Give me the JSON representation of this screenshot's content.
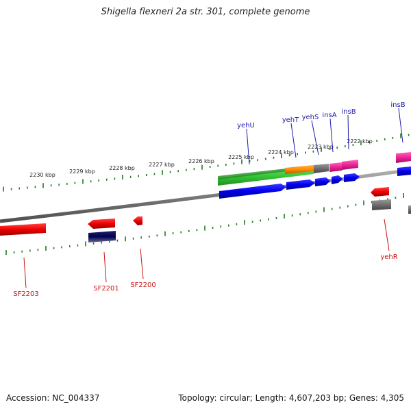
{
  "title": "Shigella flexneri 2a str. 301, complete genome",
  "footer": {
    "accession": "Accession: NC_004337",
    "summary": "Topology: circular; Length: 4,607,203 bp; Genes: 4,305"
  },
  "colors": {
    "label_upper": "#1a1ab0",
    "label_lower": "#cc1111",
    "ruler": "#1f7a1f",
    "backbone": "#7a7a7a"
  },
  "ruler_upper_ticks": [
    "2230 kbp",
    "2229 kbp",
    "2228 kbp",
    "2227 kbp",
    "2226 kbp",
    "2225 kbp",
    "2224 kbp",
    "2223 kbp",
    "2222 kbp"
  ],
  "genes_upper": [
    "yehU",
    "yehT",
    "yehS",
    "insA",
    "insB",
    "insB"
  ],
  "genes_lower": [
    "SF2203",
    "SF2201",
    "SF2200",
    "yehR"
  ],
  "feature_icons": [
    "green-gene-arrow",
    "orange-gene-arrow",
    "pink-gene-arrow",
    "blue-gene-arrow",
    "red-gene-arrow",
    "gray-gene-box",
    "navy-gene-box"
  ]
}
